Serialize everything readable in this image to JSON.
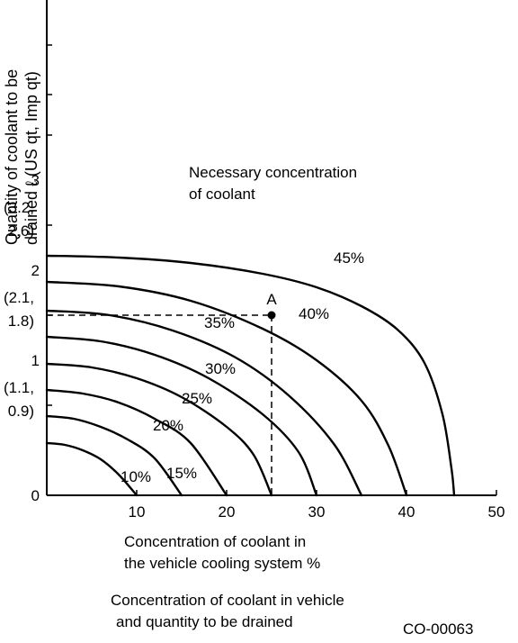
{
  "chart_data": {
    "type": "line",
    "annotation": [
      "Necessary concentration",
      "of coolant"
    ],
    "ylabel": [
      "Quantity of coolant to be",
      "drained ℓ (US qt, Imp qt)"
    ],
    "xlabel": [
      "Concentration of coolant in",
      "the vehicle cooling system %"
    ],
    "caption": [
      "Concentration of coolant in vehicle",
      "and quantity to be drained"
    ],
    "code": "CO-00063",
    "xlim": [
      0,
      50
    ],
    "ylim": [
      0,
      5.5
    ],
    "x_ticks": [
      10,
      20,
      30,
      40,
      50
    ],
    "y_tick_positions": [
      0,
      1,
      2,
      3,
      4
    ],
    "y_tick_labels": [
      {
        "y": 0,
        "lines": [
          "0"
        ]
      },
      {
        "y": 1,
        "lines": [
          "(1.1,",
          "0.9)"
        ],
        "top": "1"
      },
      {
        "y": 2,
        "lines": [
          "(2.1,",
          "1.8)"
        ],
        "top": "2"
      },
      {
        "y": 3,
        "lines": [
          "(3.2,",
          "2.6)"
        ],
        "top": "3"
      }
    ],
    "series": [
      {
        "name": "10%",
        "label_x": 9.9,
        "label_y": 0.15,
        "points": [
          [
            0,
            0.58
          ],
          [
            2,
            0.56
          ],
          [
            4,
            0.5
          ],
          [
            6,
            0.4
          ],
          [
            8,
            0.23
          ],
          [
            10,
            0
          ]
        ]
      },
      {
        "name": "15%",
        "label_x": 15.0,
        "label_y": 0.19,
        "points": [
          [
            0,
            0.88
          ],
          [
            3,
            0.85
          ],
          [
            6,
            0.76
          ],
          [
            9,
            0.62
          ],
          [
            12,
            0.41
          ],
          [
            15,
            0
          ]
        ]
      },
      {
        "name": "20%",
        "label_x": 13.5,
        "label_y": 0.72,
        "points": [
          [
            0,
            1.17
          ],
          [
            4,
            1.13
          ],
          [
            8,
            1.03
          ],
          [
            12,
            0.85
          ],
          [
            16,
            0.58
          ],
          [
            20,
            0
          ]
        ]
      },
      {
        "name": "25%",
        "label_x": 16.7,
        "label_y": 1.02,
        "points": [
          [
            0,
            1.46
          ],
          [
            5,
            1.42
          ],
          [
            10,
            1.3
          ],
          [
            15,
            1.09
          ],
          [
            20,
            0.76
          ],
          [
            23,
            0.45
          ],
          [
            25,
            0
          ]
        ]
      },
      {
        "name": "30%",
        "label_x": 19.3,
        "label_y": 1.35,
        "points": [
          [
            0,
            1.76
          ],
          [
            6,
            1.71
          ],
          [
            12,
            1.56
          ],
          [
            18,
            1.3
          ],
          [
            24,
            0.9
          ],
          [
            28,
            0.48
          ],
          [
            30,
            0
          ]
        ]
      },
      {
        "name": "35%",
        "label_x": 19.2,
        "label_y": 1.86,
        "points": [
          [
            0,
            2.05
          ],
          [
            7,
            2.0
          ],
          [
            14,
            1.83
          ],
          [
            21,
            1.53
          ],
          [
            27,
            1.1
          ],
          [
            32,
            0.56
          ],
          [
            35,
            0
          ]
        ]
      },
      {
        "name": "40%",
        "label_x": 29.7,
        "label_y": 1.96,
        "points": [
          [
            0,
            2.37
          ],
          [
            8,
            2.32
          ],
          [
            16,
            2.16
          ],
          [
            24,
            1.85
          ],
          [
            30,
            1.5
          ],
          [
            35,
            1.05
          ],
          [
            38,
            0.55
          ],
          [
            40,
            0
          ]
        ]
      },
      {
        "name": "45%",
        "label_x": 33.6,
        "label_y": 2.58,
        "points": [
          [
            0,
            2.66
          ],
          [
            8,
            2.64
          ],
          [
            16,
            2.58
          ],
          [
            24,
            2.46
          ],
          [
            30,
            2.31
          ],
          [
            35,
            2.1
          ],
          [
            39,
            1.84
          ],
          [
            42,
            1.47
          ],
          [
            44,
            0.9
          ],
          [
            45,
            0.3
          ],
          [
            45.3,
            0
          ]
        ]
      }
    ],
    "point_A": {
      "label": "A",
      "x": 25,
      "y": 2.0
    }
  }
}
